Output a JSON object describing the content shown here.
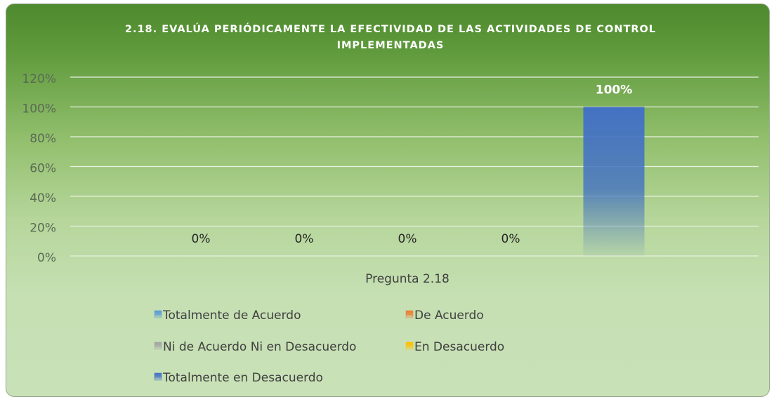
{
  "chart_data": {
    "type": "bar",
    "title": "2.18. EVALÚA PERIÓDICAMENTE LA EFECTIVIDAD DE LAS ACTIVIDADES DE CONTROL IMPLEMENTADAS",
    "categories": [
      "Pregunta 2.18"
    ],
    "series": [
      {
        "name": "Totalmente de Acuerdo",
        "color": "#5b9bd5",
        "values": [
          0
        ],
        "value_labels": [
          "0%"
        ]
      },
      {
        "name": "De Acuerdo",
        "color": "#ed7d31",
        "values": [
          0
        ],
        "value_labels": [
          "0%"
        ]
      },
      {
        "name": "Ni de Acuerdo Ni en Desacuerdo",
        "color": "#a5a5a5",
        "values": [
          0
        ],
        "value_labels": [
          "0%"
        ]
      },
      {
        "name": "En Desacuerdo",
        "color": "#ffc000",
        "values": [
          0
        ],
        "value_labels": [
          "0%"
        ]
      },
      {
        "name": "Totalmente en Desacuerdo",
        "color": "#4472c4",
        "values": [
          100
        ],
        "value_labels": [
          "100%"
        ]
      }
    ],
    "ylim": [
      0,
      120
    ],
    "yticks": [
      {
        "value": 0,
        "label": "0%"
      },
      {
        "value": 20,
        "label": "20%"
      },
      {
        "value": 40,
        "label": "40%"
      },
      {
        "value": 60,
        "label": "60%"
      },
      {
        "value": 80,
        "label": "80%"
      },
      {
        "value": 100,
        "label": "100%"
      },
      {
        "value": 120,
        "label": "120%"
      }
    ],
    "grid": true,
    "legend": "bottom"
  }
}
